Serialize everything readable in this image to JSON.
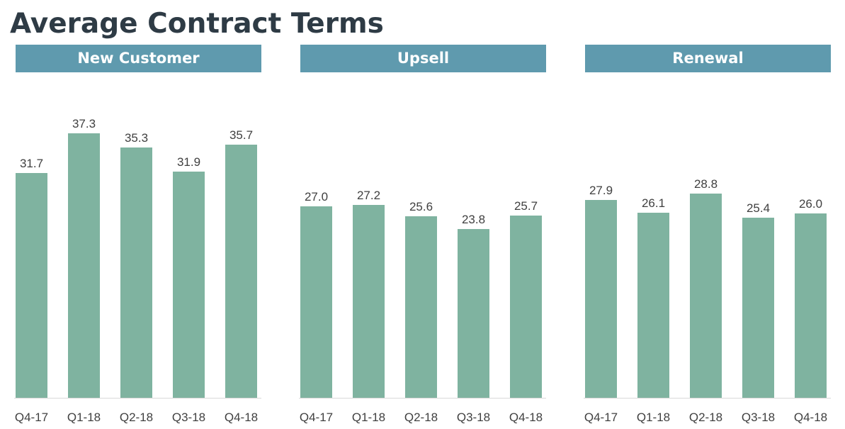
{
  "page": {
    "title": "Average Contract Terms"
  },
  "colors": {
    "header_bg": "#5f9aae",
    "bar": "#7fb3a0",
    "title": "#2e3b45",
    "text": "#404040"
  },
  "chart_data": [
    {
      "type": "bar",
      "title": "New Customer",
      "categories": [
        "Q4-17",
        "Q1-18",
        "Q2-18",
        "Q3-18",
        "Q4-18"
      ],
      "values": [
        31.7,
        37.3,
        35.3,
        31.9,
        35.7
      ],
      "data_labels": [
        "31.7",
        "37.3",
        "35.3",
        "31.9",
        "35.7"
      ],
      "ylim": [
        0,
        40
      ],
      "grid": false,
      "legend": "none"
    },
    {
      "type": "bar",
      "title": "Upsell",
      "categories": [
        "Q4-17",
        "Q1-18",
        "Q2-18",
        "Q3-18",
        "Q4-18"
      ],
      "values": [
        27.0,
        27.2,
        25.6,
        23.8,
        25.7
      ],
      "data_labels": [
        "27.0",
        "27.2",
        "25.6",
        "23.8",
        "25.7"
      ],
      "ylim": [
        0,
        40
      ],
      "grid": false,
      "legend": "none"
    },
    {
      "type": "bar",
      "title": "Renewal",
      "categories": [
        "Q4-17",
        "Q1-18",
        "Q2-18",
        "Q3-18",
        "Q4-18"
      ],
      "values": [
        27.9,
        26.1,
        28.8,
        25.4,
        26.0
      ],
      "data_labels": [
        "27.9",
        "26.1",
        "28.8",
        "25.4",
        "26.0"
      ],
      "ylim": [
        0,
        40
      ],
      "grid": false,
      "legend": "none"
    }
  ]
}
